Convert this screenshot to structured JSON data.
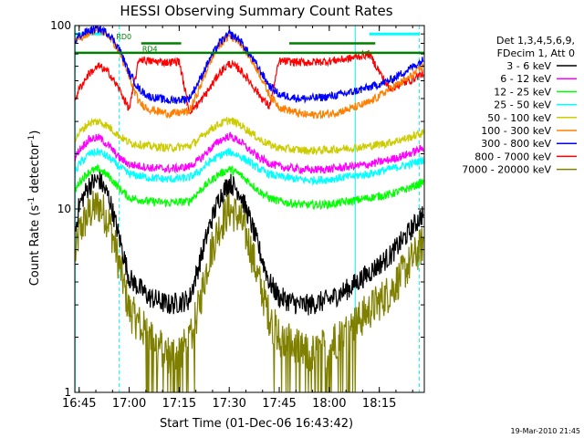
{
  "chart_data": {
    "type": "line",
    "title": "HESSI Observing Summary Count Rates",
    "xlabel": "Start Time (01-Dec-06 16:43:42)",
    "ylabel_main": "Count Rate (s",
    "ylabel_sup1": "-1",
    "ylabel_mid": " detector",
    "ylabel_sup2": "-1",
    "ylabel_end": ")",
    "yscale": "log",
    "ylim": [
      1,
      100
    ],
    "xlim": [
      16.7283,
      18.475
    ],
    "x_ticks": [
      {
        "value": 16.75,
        "label": "16:45"
      },
      {
        "value": 17.0,
        "label": "17:00"
      },
      {
        "value": 17.25,
        "label": "17:15"
      },
      {
        "value": 17.5,
        "label": "17:30"
      },
      {
        "value": 17.75,
        "label": "17:45"
      },
      {
        "value": 18.0,
        "label": "18:00"
      },
      {
        "value": 18.25,
        "label": "18:15"
      }
    ],
    "y_ticks": [
      {
        "value": 1,
        "label": "1"
      },
      {
        "value": 10,
        "label": "10"
      },
      {
        "value": 100,
        "label": "100"
      }
    ],
    "legend_header": [
      "Det 1,3,4,5,6,9,",
      "FDecim 1, Att 0"
    ],
    "series": [
      {
        "name": "3 - 6 keV",
        "color": "#000000",
        "points": [
          [
            16.73,
            7.5
          ],
          [
            16.75,
            10.5
          ],
          [
            16.8,
            13.5
          ],
          [
            16.85,
            14.5
          ],
          [
            16.9,
            11.5
          ],
          [
            16.95,
            7.0
          ],
          [
            17.0,
            4.2
          ],
          [
            17.1,
            3.3
          ],
          [
            17.2,
            3.0
          ],
          [
            17.3,
            3.2
          ],
          [
            17.35,
            5.0
          ],
          [
            17.4,
            8.0
          ],
          [
            17.45,
            11.5
          ],
          [
            17.5,
            14.0
          ],
          [
            17.55,
            12.5
          ],
          [
            17.6,
            9.0
          ],
          [
            17.65,
            6.0
          ],
          [
            17.7,
            4.0
          ],
          [
            17.75,
            3.3
          ],
          [
            17.85,
            3.0
          ],
          [
            17.9,
            3.0
          ],
          [
            18.0,
            3.2
          ],
          [
            18.1,
            3.7
          ],
          [
            18.2,
            4.5
          ],
          [
            18.3,
            5.5
          ],
          [
            18.4,
            7.5
          ],
          [
            18.47,
            9.5
          ]
        ]
      },
      {
        "name": "6 - 12 keV",
        "color": "#ff00ff",
        "points": [
          [
            16.73,
            19.0
          ],
          [
            16.75,
            21.0
          ],
          [
            16.8,
            24.0
          ],
          [
            16.85,
            24.5
          ],
          [
            16.9,
            22.0
          ],
          [
            16.95,
            19.0
          ],
          [
            17.0,
            17.5
          ],
          [
            17.1,
            16.8
          ],
          [
            17.2,
            16.5
          ],
          [
            17.3,
            17.0
          ],
          [
            17.35,
            18.5
          ],
          [
            17.4,
            21.0
          ],
          [
            17.45,
            23.5
          ],
          [
            17.5,
            25.0
          ],
          [
            17.55,
            23.5
          ],
          [
            17.6,
            21.0
          ],
          [
            17.65,
            19.0
          ],
          [
            17.7,
            17.8
          ],
          [
            17.75,
            17.0
          ],
          [
            17.85,
            16.5
          ],
          [
            17.9,
            16.3
          ],
          [
            18.0,
            16.5
          ],
          [
            18.1,
            17.0
          ],
          [
            18.2,
            17.5
          ],
          [
            18.3,
            18.5
          ],
          [
            18.4,
            20.0
          ],
          [
            18.47,
            21.5
          ]
        ]
      },
      {
        "name": "12 - 25 keV",
        "color": "#00ff00",
        "points": [
          [
            16.73,
            12.5
          ],
          [
            16.75,
            14.0
          ],
          [
            16.8,
            16.0
          ],
          [
            16.85,
            16.5
          ],
          [
            16.9,
            15.0
          ],
          [
            16.95,
            13.0
          ],
          [
            17.0,
            11.5
          ],
          [
            17.1,
            11.0
          ],
          [
            17.2,
            10.8
          ],
          [
            17.3,
            11.0
          ],
          [
            17.35,
            12.5
          ],
          [
            17.4,
            14.0
          ],
          [
            17.45,
            15.5
          ],
          [
            17.5,
            16.5
          ],
          [
            17.55,
            15.5
          ],
          [
            17.6,
            14.0
          ],
          [
            17.65,
            12.5
          ],
          [
            17.7,
            11.5
          ],
          [
            17.75,
            11.0
          ],
          [
            17.85,
            10.6
          ],
          [
            17.9,
            10.5
          ],
          [
            18.0,
            10.6
          ],
          [
            18.1,
            11.0
          ],
          [
            18.2,
            11.5
          ],
          [
            18.3,
            12.0
          ],
          [
            18.4,
            13.0
          ],
          [
            18.47,
            14.0
          ]
        ]
      },
      {
        "name": "25 - 50 keV",
        "color": "#00ffff",
        "points": [
          [
            16.73,
            16.0
          ],
          [
            16.75,
            17.5
          ],
          [
            16.8,
            20.0
          ],
          [
            16.85,
            20.5
          ],
          [
            16.9,
            19.0
          ],
          [
            16.95,
            17.0
          ],
          [
            17.0,
            15.5
          ],
          [
            17.1,
            14.8
          ],
          [
            17.2,
            14.5
          ],
          [
            17.3,
            14.8
          ],
          [
            17.35,
            16.0
          ],
          [
            17.4,
            18.0
          ],
          [
            17.45,
            19.5
          ],
          [
            17.5,
            20.5
          ],
          [
            17.55,
            19.5
          ],
          [
            17.6,
            18.0
          ],
          [
            17.65,
            16.5
          ],
          [
            17.7,
            15.5
          ],
          [
            17.75,
            15.0
          ],
          [
            17.85,
            14.5
          ],
          [
            17.9,
            14.3
          ],
          [
            18.0,
            14.5
          ],
          [
            18.1,
            15.0
          ],
          [
            18.2,
            15.5
          ],
          [
            18.3,
            16.5
          ],
          [
            18.4,
            17.5
          ],
          [
            18.47,
            18.5
          ]
        ]
      },
      {
        "name": "50 - 100 keV",
        "color": "#cccc00",
        "points": [
          [
            16.73,
            24.0
          ],
          [
            16.75,
            26.0
          ],
          [
            16.8,
            29.5
          ],
          [
            16.85,
            30.0
          ],
          [
            16.9,
            28.0
          ],
          [
            16.95,
            25.0
          ],
          [
            17.0,
            23.0
          ],
          [
            17.1,
            22.0
          ],
          [
            17.2,
            21.5
          ],
          [
            17.3,
            22.0
          ],
          [
            17.35,
            24.0
          ],
          [
            17.4,
            27.0
          ],
          [
            17.45,
            29.0
          ],
          [
            17.5,
            30.5
          ],
          [
            17.55,
            29.0
          ],
          [
            17.6,
            26.5
          ],
          [
            17.65,
            24.0
          ],
          [
            17.7,
            22.5
          ],
          [
            17.75,
            21.5
          ],
          [
            17.85,
            21.0
          ],
          [
            17.9,
            20.8
          ],
          [
            18.0,
            21.0
          ],
          [
            18.1,
            21.5
          ],
          [
            18.2,
            22.0
          ],
          [
            18.3,
            23.0
          ],
          [
            18.4,
            24.5
          ],
          [
            18.47,
            26.0
          ]
        ]
      },
      {
        "name": "100 - 300 keV",
        "color": "#ff8000",
        "points": [
          [
            16.73,
            80.0
          ],
          [
            16.75,
            85.0
          ],
          [
            16.8,
            92.0
          ],
          [
            16.85,
            95.0
          ],
          [
            16.9,
            88.0
          ],
          [
            16.95,
            72.0
          ],
          [
            17.0,
            52.0
          ],
          [
            17.05,
            38.0
          ],
          [
            17.1,
            35.0
          ],
          [
            17.2,
            33.0
          ],
          [
            17.3,
            34.0
          ],
          [
            17.35,
            45.0
          ],
          [
            17.4,
            62.0
          ],
          [
            17.45,
            78.0
          ],
          [
            17.5,
            88.0
          ],
          [
            17.55,
            82.0
          ],
          [
            17.6,
            68.0
          ],
          [
            17.65,
            55.0
          ],
          [
            17.7,
            42.0
          ],
          [
            17.75,
            36.0
          ],
          [
            17.85,
            33.0
          ],
          [
            17.9,
            32.5
          ],
          [
            18.0,
            33.0
          ],
          [
            18.1,
            35.0
          ],
          [
            18.2,
            38.0
          ],
          [
            18.3,
            45.0
          ],
          [
            18.4,
            52.0
          ],
          [
            18.47,
            60.0
          ]
        ]
      },
      {
        "name": "300 - 800 keV",
        "color": "#0000ff",
        "points": [
          [
            16.73,
            82.0
          ],
          [
            16.75,
            88.0
          ],
          [
            16.8,
            94.0
          ],
          [
            16.85,
            96.0
          ],
          [
            16.9,
            90.0
          ],
          [
            16.95,
            75.0
          ],
          [
            17.0,
            55.0
          ],
          [
            17.05,
            45.0
          ],
          [
            17.1,
            41.0
          ],
          [
            17.2,
            39.0
          ],
          [
            17.3,
            40.0
          ],
          [
            17.35,
            50.0
          ],
          [
            17.4,
            65.0
          ],
          [
            17.45,
            80.0
          ],
          [
            17.5,
            90.0
          ],
          [
            17.55,
            84.0
          ],
          [
            17.6,
            70.0
          ],
          [
            17.65,
            58.0
          ],
          [
            17.7,
            47.0
          ],
          [
            17.75,
            42.0
          ],
          [
            17.85,
            40.0
          ],
          [
            17.9,
            40.0
          ],
          [
            18.0,
            41.0
          ],
          [
            18.1,
            43.0
          ],
          [
            18.2,
            46.0
          ],
          [
            18.3,
            50.0
          ],
          [
            18.4,
            58.0
          ],
          [
            18.47,
            65.0
          ]
        ]
      },
      {
        "name": "800 - 7000 keV",
        "color": "#ff0000",
        "points": [
          [
            16.73,
            40.0
          ],
          [
            16.75,
            45.0
          ],
          [
            16.8,
            55.0
          ],
          [
            16.85,
            60.0
          ],
          [
            16.9,
            55.0
          ],
          [
            16.95,
            45.0
          ],
          [
            17.0,
            35.0
          ],
          [
            17.05,
            66.0
          ],
          [
            17.1,
            64.0
          ],
          [
            17.2,
            63.0
          ],
          [
            17.25,
            64.0
          ],
          [
            17.3,
            34.0
          ],
          [
            17.35,
            38.0
          ],
          [
            17.4,
            45.0
          ],
          [
            17.45,
            55.0
          ],
          [
            17.5,
            62.0
          ],
          [
            17.55,
            58.0
          ],
          [
            17.6,
            50.0
          ],
          [
            17.65,
            42.0
          ],
          [
            17.7,
            36.0
          ],
          [
            17.75,
            64.0
          ],
          [
            17.85,
            63.0
          ],
          [
            17.9,
            63.0
          ],
          [
            18.0,
            64.0
          ],
          [
            18.1,
            66.0
          ],
          [
            18.2,
            70.0
          ],
          [
            18.3,
            45.0
          ],
          [
            18.4,
            50.0
          ],
          [
            18.47,
            55.0
          ]
        ]
      },
      {
        "name": "7000 - 20000 keV",
        "color": "#808000",
        "points": [
          [
            16.73,
            5.5
          ],
          [
            16.75,
            7.5
          ],
          [
            16.8,
            9.5
          ],
          [
            16.85,
            10.5
          ],
          [
            16.9,
            8.5
          ],
          [
            16.95,
            5.0
          ],
          [
            17.0,
            2.8
          ],
          [
            17.1,
            2.0
          ],
          [
            17.2,
            1.6
          ],
          [
            17.3,
            1.8
          ],
          [
            17.35,
            3.0
          ],
          [
            17.4,
            5.5
          ],
          [
            17.45,
            8.0
          ],
          [
            17.5,
            10.0
          ],
          [
            17.55,
            9.0
          ],
          [
            17.6,
            6.5
          ],
          [
            17.65,
            4.0
          ],
          [
            17.7,
            2.6
          ],
          [
            17.75,
            2.0
          ],
          [
            17.85,
            1.7
          ],
          [
            17.9,
            1.6
          ],
          [
            18.0,
            1.8
          ],
          [
            18.1,
            2.2
          ],
          [
            18.2,
            2.8
          ],
          [
            18.3,
            3.5
          ],
          [
            18.4,
            5.0
          ],
          [
            18.47,
            6.5
          ]
        ]
      }
    ],
    "flag_lines": [
      {
        "color": "#008000",
        "segments": [
          [
            16.73,
            18.475,
            71.0
          ]
        ]
      }
    ],
    "flag_steps": [
      {
        "color": "#008000",
        "segments": [
          [
            17.06,
            17.26,
            80.0
          ],
          [
            17.8,
            18.23,
            80.0
          ]
        ]
      }
    ],
    "vlines": [
      {
        "x": 16.73,
        "color": "#00ffff",
        "style": "solid"
      },
      {
        "x": 16.95,
        "color": "#00ffff",
        "style": "dashed"
      },
      {
        "x": 18.13,
        "color": "#00ffff",
        "style": "solid"
      },
      {
        "x": 18.45,
        "color": "#00ffff",
        "style": "dashed"
      }
    ],
    "cyan_bars": [
      [
        16.73,
        16.87,
        90.0
      ],
      [
        18.2,
        18.45,
        90.0
      ]
    ],
    "annotations": [
      {
        "text": "RD0",
        "x": 16.935,
        "y": 84.0,
        "color": "#008000"
      },
      {
        "text": "RD4",
        "x": 17.065,
        "y": 72.0,
        "color": "#008000"
      }
    ],
    "date_stamp": "19-Mar-2010 21:45"
  }
}
